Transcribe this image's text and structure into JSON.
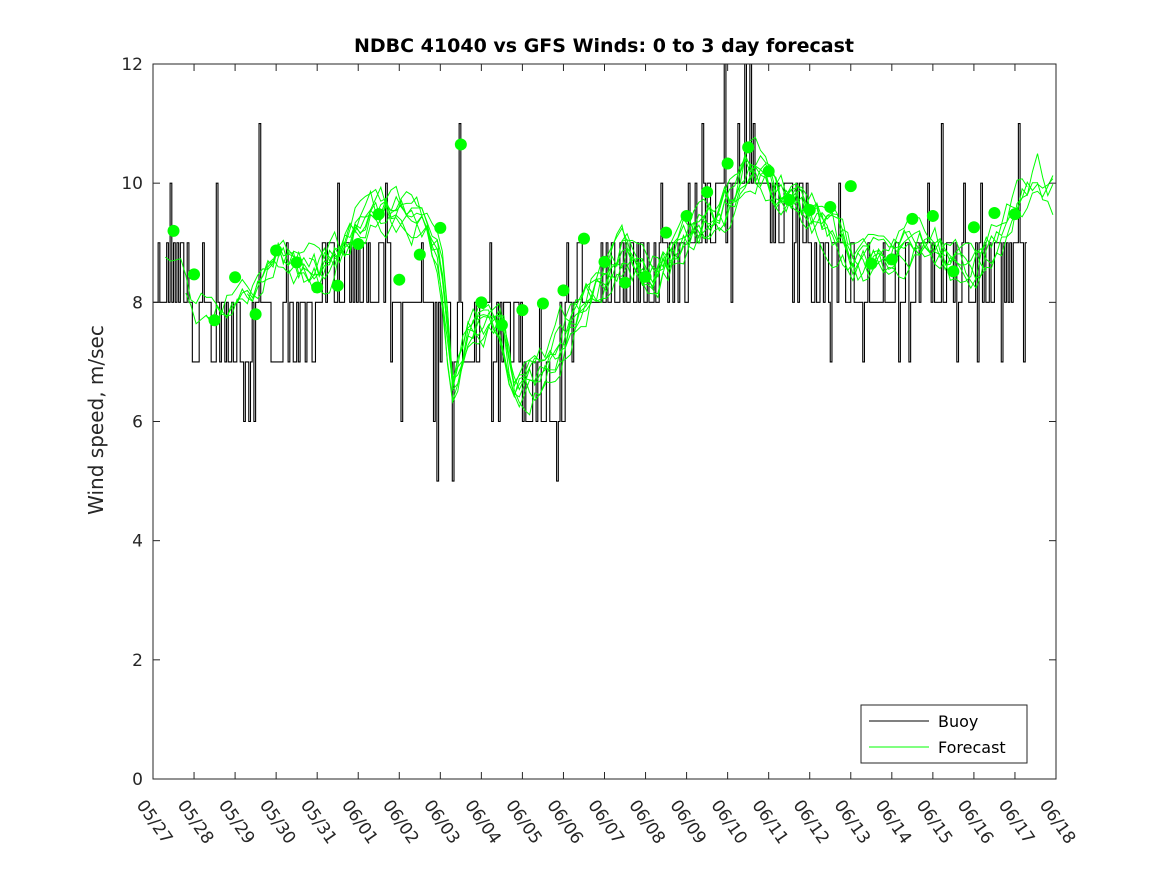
{
  "chart_data": {
    "type": "line",
    "title": "NDBC 41040 vs GFS Winds: 0 to 3 day forecast",
    "xlabel": "",
    "ylabel": "Wind speed, m/sec",
    "ylim": [
      0,
      12
    ],
    "yticks": [
      0,
      2,
      4,
      6,
      8,
      10,
      12
    ],
    "xlim": [
      0,
      22
    ],
    "xtick_labels": [
      "05/27",
      "05/28",
      "05/29",
      "05/30",
      "05/31",
      "06/01",
      "06/02",
      "06/03",
      "06/04",
      "06/05",
      "06/06",
      "06/07",
      "06/08",
      "06/09",
      "06/10",
      "06/11",
      "06/12",
      "06/13",
      "06/14",
      "06/15",
      "06/16",
      "06/17",
      "06/18"
    ],
    "grid": false,
    "legend": {
      "location": "bottom-right",
      "entries": [
        {
          "label": "Buoy",
          "color": "#000000"
        },
        {
          "label": "Forecast",
          "color": "#00ff00"
        }
      ]
    },
    "buoy": {
      "name": "Buoy",
      "color": "#000000",
      "day_range": [
        0,
        21.25
      ],
      "daily_levels": [
        [
          9,
          8
        ],
        [
          8,
          7
        ],
        [
          7,
          8
        ],
        [
          8,
          7
        ],
        [
          8,
          9
        ],
        [
          9,
          8
        ],
        [
          8,
          8
        ],
        [
          7,
          8
        ],
        [
          8,
          7
        ],
        [
          7,
          6
        ],
        [
          8,
          8
        ],
        [
          9,
          8
        ],
        [
          8,
          9
        ],
        [
          9,
          10
        ],
        [
          10,
          10
        ],
        [
          10,
          9
        ],
        [
          9,
          8
        ],
        [
          8,
          8
        ],
        [
          8,
          9
        ],
        [
          9,
          8
        ],
        [
          8,
          9
        ],
        [
          9,
          9
        ]
      ],
      "extremes": [
        {
          "day": 0.4,
          "value": 10
        },
        {
          "day": 1.55,
          "value": 10
        },
        {
          "day": 2.2,
          "value": 6
        },
        {
          "day": 2.35,
          "value": 6
        },
        {
          "day": 2.45,
          "value": 6
        },
        {
          "day": 2.6,
          "value": 11
        },
        {
          "day": 4.5,
          "value": 10
        },
        {
          "day": 6.05,
          "value": 6
        },
        {
          "day": 6.85,
          "value": 6
        },
        {
          "day": 6.9,
          "value": 5
        },
        {
          "day": 7.3,
          "value": 5
        },
        {
          "day": 7.45,
          "value": 11
        },
        {
          "day": 8.4,
          "value": 6
        },
        {
          "day": 13.9,
          "value": 12
        },
        {
          "day": 14.4,
          "value": 12
        },
        {
          "day": 14.55,
          "value": 12
        },
        {
          "day": 14.1,
          "value": 8
        },
        {
          "day": 16.5,
          "value": 7
        },
        {
          "day": 17.3,
          "value": 7
        },
        {
          "day": 19.2,
          "value": 11
        },
        {
          "day": 20.1,
          "value": 7
        },
        {
          "day": 21.2,
          "value": 7
        },
        {
          "day": 21.1,
          "value": 11
        }
      ]
    },
    "forecast": {
      "name": "Forecast",
      "color": "#00ff00",
      "runs": 8,
      "day_range": [
        0.3,
        22
      ],
      "mean_curve": [
        [
          0.3,
          8.7
        ],
        [
          1,
          8.0
        ],
        [
          1.5,
          7.8
        ],
        [
          2,
          8.1
        ],
        [
          2.5,
          8.4
        ],
        [
          3,
          8.9
        ],
        [
          3.5,
          8.7
        ],
        [
          4,
          8.5
        ],
        [
          4.5,
          8.8
        ],
        [
          5,
          9.3
        ],
        [
          5.5,
          9.5
        ],
        [
          6,
          9.5
        ],
        [
          6.5,
          9.4
        ],
        [
          7,
          8.7
        ],
        [
          7.3,
          6.4
        ],
        [
          7.6,
          7.4
        ],
        [
          8,
          7.7
        ],
        [
          8.5,
          7.6
        ],
        [
          8.8,
          6.5
        ],
        [
          9.3,
          6.7
        ],
        [
          9.7,
          7.0
        ],
        [
          10,
          7.5
        ],
        [
          10.5,
          8.0
        ],
        [
          11,
          8.5
        ],
        [
          11.5,
          8.9
        ],
        [
          12,
          8.5
        ],
        [
          12.5,
          8.6
        ],
        [
          13,
          9.1
        ],
        [
          13.5,
          9.4
        ],
        [
          14,
          9.6
        ],
        [
          14.5,
          10.4
        ],
        [
          15,
          10.1
        ],
        [
          15.5,
          9.7
        ],
        [
          16,
          9.5
        ],
        [
          16.5,
          9.2
        ],
        [
          17,
          8.8
        ],
        [
          17.5,
          8.6
        ],
        [
          18,
          8.7
        ],
        [
          18.5,
          8.9
        ],
        [
          19,
          9.0
        ],
        [
          19.5,
          8.6
        ],
        [
          20,
          8.6
        ],
        [
          20.5,
          9.1
        ],
        [
          21,
          9.6
        ],
        [
          21.5,
          10.2
        ],
        [
          22,
          9.9
        ]
      ]
    },
    "markers": {
      "name": "Forecast",
      "color": "#00ff00",
      "points": [
        [
          0.5,
          9.2
        ],
        [
          1,
          8.47
        ],
        [
          1.5,
          7.7
        ],
        [
          2,
          8.42
        ],
        [
          2.5,
          7.8
        ],
        [
          3,
          8.87
        ],
        [
          3.5,
          8.67
        ],
        [
          4,
          8.25
        ],
        [
          4.5,
          8.28
        ],
        [
          5,
          8.98
        ],
        [
          5.5,
          9.48
        ],
        [
          6,
          8.38
        ],
        [
          6.5,
          8.8
        ],
        [
          7,
          9.25
        ],
        [
          7.5,
          10.65
        ],
        [
          8,
          8.0
        ],
        [
          8.5,
          7.62
        ],
        [
          9,
          7.87
        ],
        [
          9.5,
          7.98
        ],
        [
          10,
          8.2
        ],
        [
          10.5,
          9.07
        ],
        [
          11,
          8.68
        ],
        [
          11.5,
          8.33
        ],
        [
          12,
          8.43
        ],
        [
          12.5,
          9.17
        ],
        [
          13,
          9.45
        ],
        [
          13.5,
          9.85
        ],
        [
          14,
          10.33
        ],
        [
          14.5,
          10.6
        ],
        [
          15,
          10.2
        ],
        [
          15.5,
          9.72
        ],
        [
          16,
          9.55
        ],
        [
          16.5,
          9.6
        ],
        [
          17,
          9.95
        ],
        [
          17.5,
          8.65
        ],
        [
          18,
          8.72
        ],
        [
          18.5,
          9.4
        ],
        [
          19,
          9.45
        ],
        [
          19.5,
          8.52
        ],
        [
          20,
          9.26
        ],
        [
          20.5,
          9.5
        ],
        [
          21,
          9.48
        ]
      ]
    }
  }
}
